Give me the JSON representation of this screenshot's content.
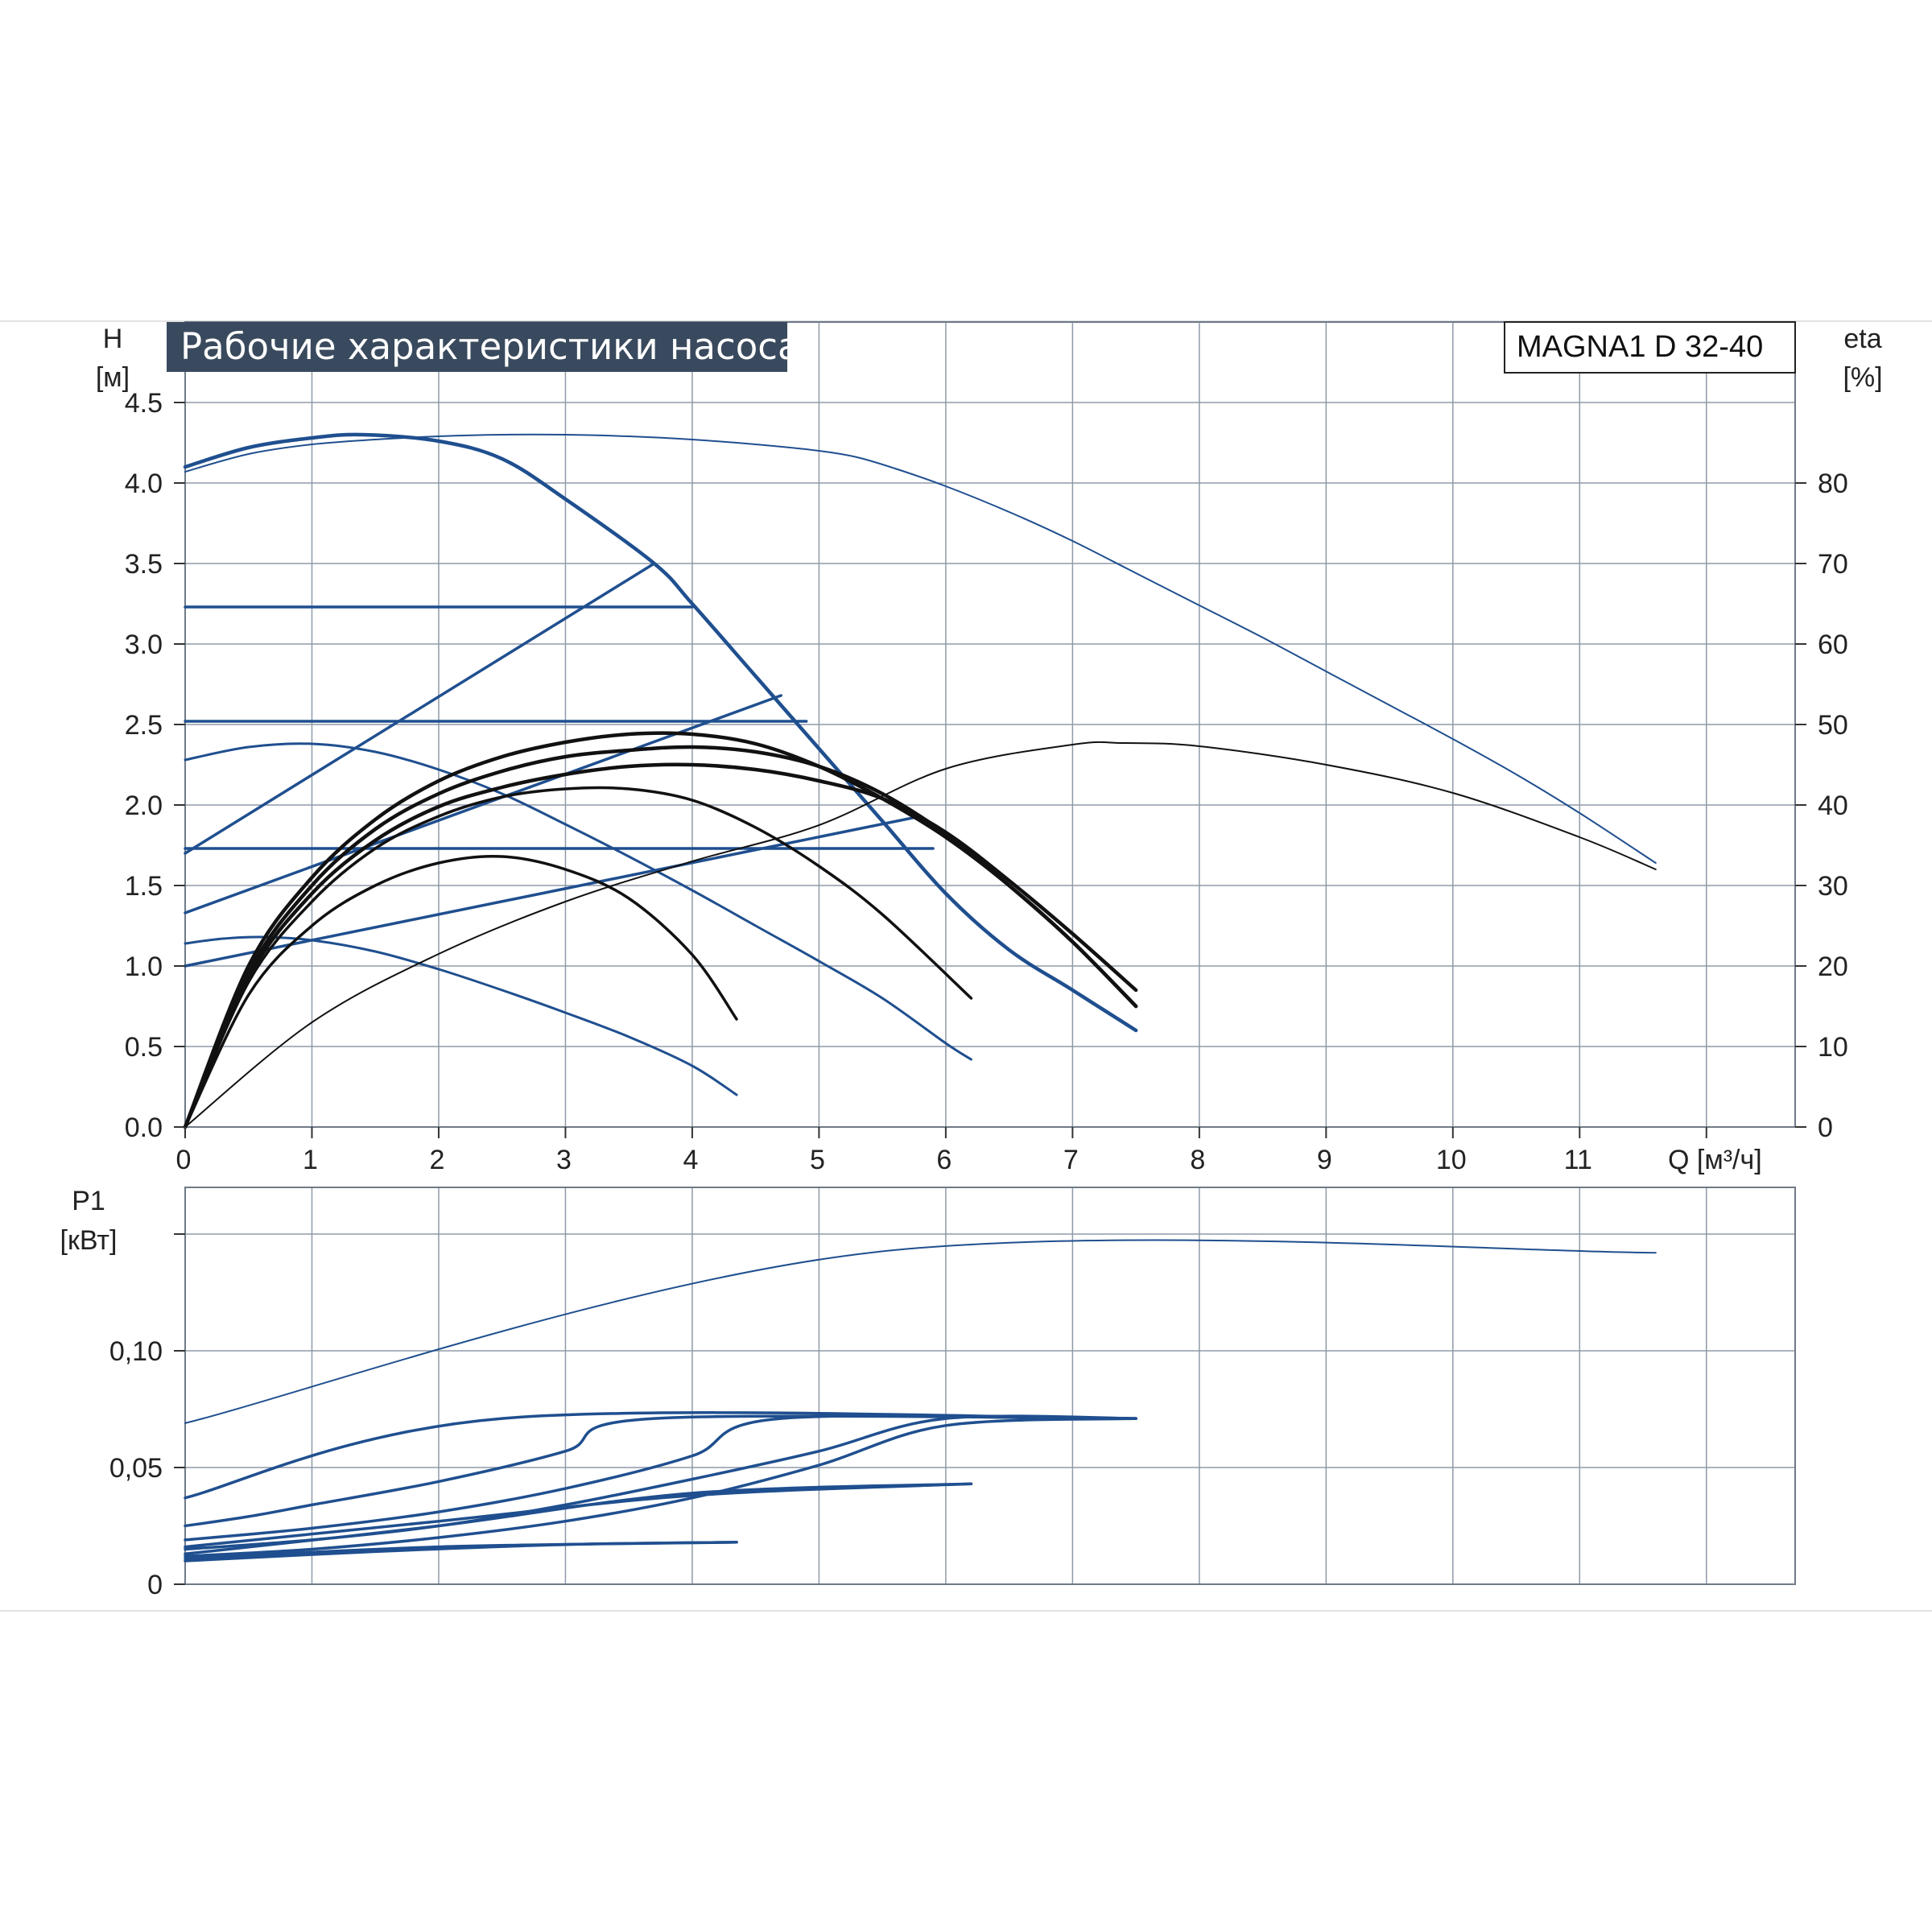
{
  "chart_data": [
    {
      "type": "line",
      "title": "Рабочие характеристики насоса",
      "model": "MAGNA1 D 32-40",
      "xlabel": "Q [м³/ч]",
      "ylabel_name": "H",
      "ylabel_unit": "[м]",
      "y2label_name": "eta",
      "y2label_unit": "[%]",
      "xlim": [
        0,
        12.7
      ],
      "ylim": [
        0,
        5.0
      ],
      "y2lim": [
        0,
        100
      ],
      "x_ticks": [
        "0",
        "1",
        "2",
        "3",
        "4",
        "5",
        "6",
        "7",
        "8",
        "9",
        "10",
        "11"
      ],
      "y_ticks": [
        "0.0",
        "0.5",
        "1.0",
        "1.5",
        "2.0",
        "2.5",
        "3.0",
        "3.5",
        "4.0",
        "4.5"
      ],
      "y2_ticks": [
        "0",
        "10",
        "20",
        "30",
        "40",
        "50",
        "60",
        "70",
        "80"
      ],
      "grid": true,
      "series": [
        {
          "kind": "H",
          "x": [
            0,
            0.5,
            1,
            1.5,
            2,
            2.5,
            3,
            3.5,
            4,
            4.5,
            5,
            5.3,
            5.6,
            6,
            6.5,
            7,
            7.5,
            8,
            8.5,
            9,
            9.5,
            10,
            10.5,
            11,
            11.6
          ],
          "y": [
            4.07,
            4.18,
            4.24,
            4.27,
            4.29,
            4.3,
            4.3,
            4.29,
            4.27,
            4.24,
            4.2,
            4.16,
            4.09,
            3.98,
            3.82,
            3.64,
            3.44,
            3.24,
            3.04,
            2.83,
            2.62,
            2.41,
            2.19,
            1.95,
            1.64
          ]
        },
        {
          "kind": "H",
          "x": [
            0,
            0.5,
            1,
            1.4,
            2,
            2.5,
            3,
            3.7,
            4,
            4.5,
            5,
            5.5,
            6,
            6.5,
            7,
            7.5
          ],
          "y": [
            4.1,
            4.22,
            4.28,
            4.3,
            4.26,
            4.15,
            3.9,
            3.5,
            3.25,
            2.8,
            2.35,
            1.9,
            1.45,
            1.1,
            0.85,
            0.6
          ]
        },
        {
          "kind": "H",
          "x": [
            0,
            4
          ],
          "y": [
            3.23,
            3.23
          ]
        },
        {
          "kind": "H",
          "x": [
            0,
            4.9
          ],
          "y": [
            2.52,
            2.52
          ]
        },
        {
          "kind": "H",
          "x": [
            0,
            5.9
          ],
          "y": [
            1.73,
            1.73
          ]
        },
        {
          "kind": "H",
          "x": [
            0,
            3.7
          ],
          "y": [
            1.7,
            3.5
          ]
        },
        {
          "kind": "H",
          "x": [
            0,
            4.7
          ],
          "y": [
            1.33,
            2.68
          ]
        },
        {
          "kind": "H",
          "x": [
            0,
            5.8
          ],
          "y": [
            1.0,
            1.93
          ]
        },
        {
          "kind": "H",
          "x": [
            0,
            0.5,
            1,
            1.5,
            2,
            2.5,
            3,
            3.5,
            4,
            4.5,
            5,
            5.5,
            6,
            6.2
          ],
          "y": [
            2.28,
            2.36,
            2.38,
            2.33,
            2.22,
            2.07,
            1.88,
            1.68,
            1.47,
            1.25,
            1.03,
            0.8,
            0.52,
            0.42
          ]
        },
        {
          "kind": "H",
          "x": [
            0,
            0.3,
            0.6,
            1,
            1.5,
            2,
            2.5,
            3,
            3.5,
            4,
            4.35
          ],
          "y": [
            1.14,
            1.17,
            1.18,
            1.16,
            1.09,
            0.98,
            0.85,
            0.71,
            0.56,
            0.38,
            0.2
          ]
        },
        {
          "kind": "H",
          "x": [
            0,
            0.5,
            1,
            1.5,
            2,
            2.5,
            3,
            3.5,
            4,
            4.35
          ],
          "y": [
            0,
            0.82,
            1.25,
            1.5,
            1.64,
            1.68,
            1.6,
            1.42,
            1.07,
            0.67
          ]
        },
        {
          "kind": "H",
          "x": [
            0,
            0.5,
            1,
            1.5,
            2,
            2.5,
            3,
            3.5,
            4,
            4.5,
            5,
            5.5,
            6.2
          ],
          "y": [
            0,
            0.9,
            1.4,
            1.73,
            1.93,
            2.05,
            2.1,
            2.1,
            2.03,
            1.86,
            1.62,
            1.32,
            0.8
          ]
        },
        {
          "kind": "H",
          "x": [
            0,
            0.5,
            1,
            1.5,
            2,
            2.5,
            3,
            3.5,
            4,
            4.5,
            5,
            5.5,
            6,
            6.5,
            7,
            7.5
          ],
          "y": [
            0,
            0.93,
            1.45,
            1.78,
            1.99,
            2.11,
            2.19,
            2.24,
            2.25,
            2.22,
            2.15,
            2.04,
            1.83,
            1.53,
            1.2,
            0.85
          ]
        },
        {
          "kind": "H",
          "x": [
            0,
            0.5,
            1,
            1.5,
            2,
            2.5,
            3,
            3.5,
            4,
            4.5,
            5,
            5.5,
            6,
            6.5,
            7,
            7.5
          ],
          "y": [
            0,
            0.96,
            1.5,
            1.85,
            2.07,
            2.21,
            2.3,
            2.34,
            2.36,
            2.33,
            2.24,
            2.07,
            1.82,
            1.5,
            1.15,
            0.75
          ]
        },
        {
          "kind": "H",
          "x": [
            0,
            0.5,
            1,
            1.5,
            2,
            2.5,
            3,
            3.5,
            4,
            4.5,
            5,
            5.5,
            6,
            6.5,
            7,
            7.5
          ],
          "y": [
            0,
            1.0,
            1.55,
            1.91,
            2.15,
            2.3,
            2.39,
            2.44,
            2.44,
            2.38,
            2.24,
            2.04,
            1.8,
            1.5,
            1.15,
            0.75
          ]
        },
        {
          "kind": "eta",
          "x": [
            0,
            1,
            2,
            3,
            4,
            5,
            6,
            7,
            7.4,
            8,
            9,
            10,
            11,
            11.6
          ],
          "y": [
            0,
            13,
            21.5,
            28,
            33,
            37.5,
            44.5,
            47.5,
            47.7,
            47.3,
            45,
            41.5,
            36,
            32
          ]
        }
      ]
    },
    {
      "type": "line",
      "ylabel_name": "P1",
      "ylabel_unit": "[кВт]",
      "xlim": [
        0,
        12.7
      ],
      "ylim": [
        0,
        0.17
      ],
      "y_ticks": [
        "0",
        "0,05",
        "0,10"
      ],
      "grid": true,
      "series": [
        {
          "x": [
            0,
            5.4,
            11.6
          ],
          "y": [
            0.069,
            0.142,
            0.142
          ]
        },
        {
          "x": [
            0,
            2.5,
            7.5
          ],
          "y": [
            0.037,
            0.071,
            0.071
          ]
        },
        {
          "x": [
            0,
            0.5,
            1,
            2,
            3,
            3.7,
            7.5
          ],
          "y": [
            0.025,
            0.029,
            0.034,
            0.044,
            0.057,
            0.071,
            0.071
          ]
        },
        {
          "x": [
            0,
            1,
            2,
            3,
            4,
            4.7,
            7.5
          ],
          "y": [
            0.019,
            0.024,
            0.031,
            0.041,
            0.055,
            0.071,
            0.071
          ]
        },
        {
          "x": [
            0,
            1,
            2,
            3,
            4,
            5,
            6,
            7.5
          ],
          "y": [
            0.015,
            0.019,
            0.025,
            0.034,
            0.045,
            0.057,
            0.071,
            0.071
          ]
        },
        {
          "x": [
            0,
            1,
            2,
            3,
            4,
            5,
            6,
            7.5
          ],
          "y": [
            0.012,
            0.015,
            0.02,
            0.027,
            0.037,
            0.051,
            0.068,
            0.071
          ]
        },
        {
          "x": [
            0,
            2,
            4,
            6.2
          ],
          "y": [
            0.016,
            0.027,
            0.038,
            0.043
          ]
        },
        {
          "x": [
            0,
            2,
            4,
            6.2
          ],
          "y": [
            0.013,
            0.025,
            0.039,
            0.043
          ]
        },
        {
          "x": [
            0,
            2,
            4.35
          ],
          "y": [
            0.011,
            0.016,
            0.018
          ]
        },
        {
          "x": [
            0,
            1.5,
            3,
            4.35
          ],
          "y": [
            0.01,
            0.014,
            0.017,
            0.018
          ]
        }
      ]
    }
  ],
  "colors": {
    "blue": "#1f4f8f",
    "black": "#111111",
    "grid": "#8f9aa8",
    "banner": "#3a4a5e"
  }
}
